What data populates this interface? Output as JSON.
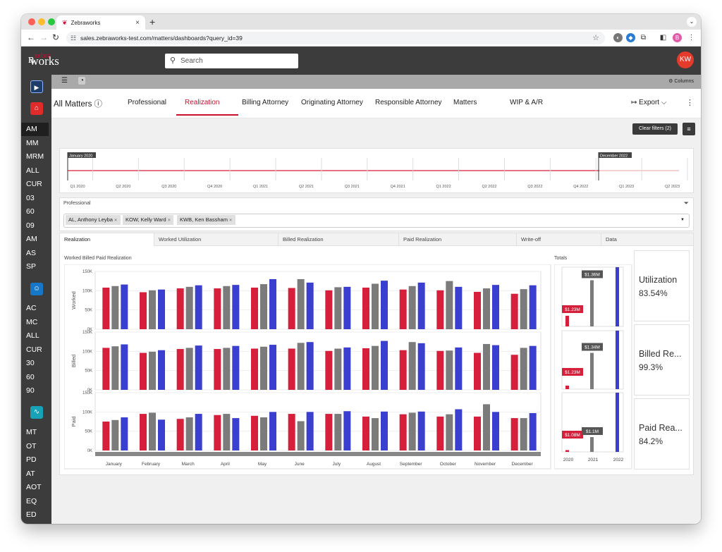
{
  "browser": {
    "tab_title": "Zebraworks",
    "url": "sales.zebraworks-test.com/matters/dashboards?query_id=39",
    "profile_initial": "B"
  },
  "app": {
    "logo_left": "n",
    "logo_top": "zebra",
    "logo_bottom": "works",
    "search_placeholder": "Search",
    "user_initials": "KW",
    "columns_label": "Columns"
  },
  "sidebar": {
    "group1": [
      "AM",
      "MM",
      "MRM",
      "ALL",
      "CUR",
      "03",
      "60",
      "09",
      "AM",
      "AS",
      "SP"
    ],
    "group2": [
      "AC",
      "MC",
      "ALL",
      "CUR",
      "30",
      "60",
      "90"
    ],
    "group3": [
      "MT",
      "OT",
      "PD",
      "AT",
      "AOT",
      "EQ",
      "ED"
    ]
  },
  "view_tabs": [
    "All Matters",
    "Professional",
    "Realization",
    "Billing Attorney",
    "Originating Attorney",
    "Responsible Attorney",
    "Matters",
    "WIP & A/R"
  ],
  "active_view_tab": "Realization",
  "export_label": "Export",
  "clear_filters_label": "Clear filters (2)",
  "timeline": {
    "start_label": "January 2020",
    "end_label": "December 2022",
    "ticks": [
      "Q1 2020",
      "Q2 2020",
      "Q3 2020",
      "Q4 2020",
      "Q1 2021",
      "Q2 2021",
      "Q3 2021",
      "Q4 2021",
      "Q1 2022",
      "Q2 2022",
      "Q3 2022",
      "Q4 2022",
      "Q1 2023",
      "Q2 2023"
    ]
  },
  "professional_filter": {
    "label": "Professional",
    "chips": [
      "AL, Anthony Leyba",
      "KOW, Kelly Ward",
      "KWB, Ken Bassham"
    ]
  },
  "sub_tabs": [
    "Realization",
    "Worked Utilization",
    "Billed Realization",
    "Paid Realization",
    "Write-off",
    "Data"
  ],
  "active_sub_tab": "Realization",
  "kpis": [
    {
      "label": "Utilization",
      "value": "83.54%"
    },
    {
      "label": "Billed Re...",
      "value": "99.3%"
    },
    {
      "label": "Paid Rea...",
      "value": "84.2%"
    }
  ],
  "colors": {
    "red": "#d61f3a",
    "grey": "#7b7b7b",
    "blue": "#3a3fd0",
    "accent": "#c8102e"
  },
  "chart_data": [
    {
      "type": "bar",
      "title": "Worked Billed Paid Realization",
      "categories": [
        "January",
        "February",
        "March",
        "April",
        "May",
        "June",
        "July",
        "August",
        "September",
        "October",
        "November",
        "December"
      ],
      "ylim": [
        0,
        150000
      ],
      "yticks": [
        "150K",
        "100K",
        "50K",
        "0K"
      ],
      "panels": [
        {
          "ylabel": "Worked",
          "series": [
            {
              "values": [
                108000,
                96000,
                106000,
                106000,
                108000,
                107000,
                101000,
                108000,
                103000,
                101000,
                97000,
                92000
              ]
            },
            {
              "values": [
                112000,
                101000,
                110000,
                112000,
                117000,
                130000,
                109000,
                118000,
                112000,
                125000,
                106000,
                104000
              ]
            },
            {
              "values": [
                116000,
                103000,
                114000,
                115000,
                130000,
                121000,
                110000,
                126000,
                121000,
                110000,
                115000,
                114000
              ]
            }
          ]
        },
        {
          "ylabel": "Billed",
          "series": [
            {
              "values": [
                109000,
                96000,
                106000,
                106000,
                107000,
                107000,
                101000,
                108000,
                103000,
                101000,
                96000,
                91000
              ]
            },
            {
              "values": [
                113000,
                99000,
                109000,
                109000,
                112000,
                122000,
                107000,
                114000,
                124000,
                102000,
                119000,
                109000
              ]
            },
            {
              "values": [
                118000,
                103000,
                115000,
                114000,
                117000,
                124000,
                110000,
                127000,
                121000,
                110000,
                116000,
                114000
              ]
            }
          ]
        },
        {
          "ylabel": "Paid",
          "series": [
            {
              "values": [
                75000,
                95000,
                82000,
                92000,
                90000,
                95000,
                95000,
                88000,
                94000,
                88000,
                88000,
                84000
              ]
            },
            {
              "values": [
                79000,
                98000,
                86000,
                95000,
                86000,
                76000,
                95000,
                84000,
                98000,
                94000,
                120000,
                84000
              ]
            },
            {
              "values": [
                86000,
                80000,
                95000,
                84000,
                100000,
                100000,
                102000,
                101000,
                101000,
                107000,
                100000,
                97000
              ]
            }
          ]
        }
      ]
    },
    {
      "type": "bar",
      "title": "Totals",
      "categories": [
        "2020",
        "2021",
        "2022"
      ],
      "panels": [
        {
          "values": [
            0.18,
            0.78,
            1.0
          ],
          "labels": [
            "$1.23M",
            "$1.36M",
            ""
          ]
        },
        {
          "values": [
            0.06,
            0.62,
            1.0
          ],
          "labels": [
            "$1.23M",
            "$1.34M",
            ""
          ]
        },
        {
          "values": [
            0.03,
            0.25,
            1.0
          ],
          "labels": [
            "$1.08M",
            "$1.1M",
            ""
          ]
        }
      ]
    }
  ]
}
